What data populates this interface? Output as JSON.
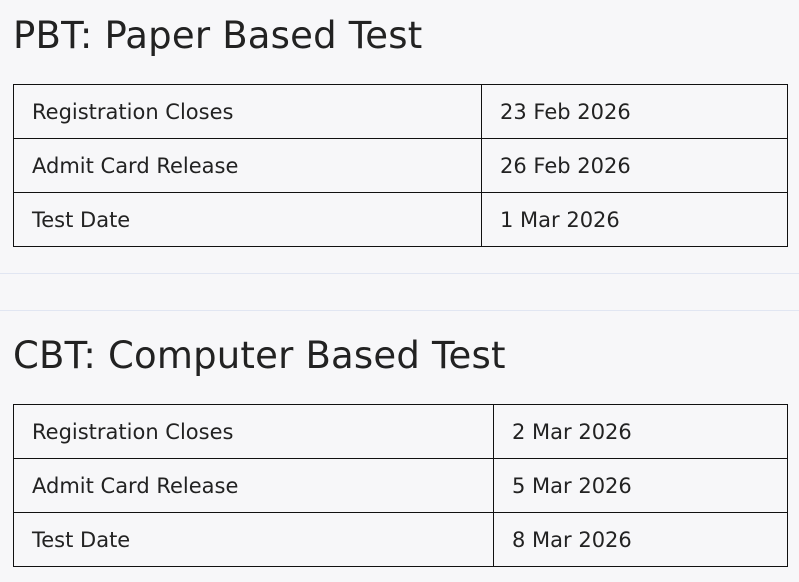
{
  "sections": [
    {
      "title": "PBT: Paper Based Test",
      "rows": [
        {
          "label": "Registration Closes",
          "value": "23 Feb 2026"
        },
        {
          "label": "Admit Card Release",
          "value": "26 Feb 2026"
        },
        {
          "label": "Test Date",
          "value": "1 Mar 2026"
        }
      ]
    },
    {
      "title": "CBT: Computer Based Test",
      "rows": [
        {
          "label": "Registration Closes",
          "value": "2 Mar 2026"
        },
        {
          "label": "Admit Card Release",
          "value": "5 Mar 2026"
        },
        {
          "label": "Test Date",
          "value": "8 Mar 2026"
        }
      ]
    }
  ]
}
